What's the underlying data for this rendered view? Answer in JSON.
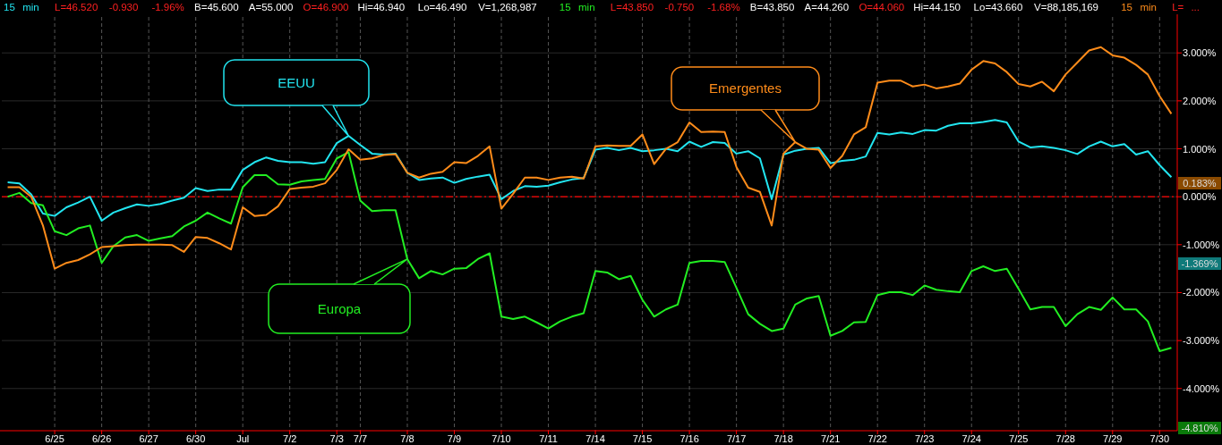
{
  "chart_data": {
    "type": "line",
    "ylim": [
      -4.88,
      3.88
    ],
    "categories": [
      null,
      null,
      null,
      null,
      "6/25",
      null,
      null,
      null,
      "6/26",
      null,
      null,
      null,
      "6/27",
      null,
      null,
      null,
      "6/30",
      null,
      null,
      null,
      "Jul",
      null,
      null,
      null,
      "7/2",
      null,
      null,
      null,
      "7/3",
      null,
      "7/7",
      null,
      null,
      null,
      "7/8",
      null,
      null,
      null,
      "7/9",
      null,
      null,
      null,
      "7/10",
      null,
      null,
      null,
      "7/11",
      null,
      null,
      null,
      "7/14",
      null,
      null,
      null,
      "7/15",
      null,
      null,
      null,
      "7/16",
      null,
      null,
      null,
      "7/17",
      null,
      null,
      null,
      "7/18",
      null,
      null,
      null,
      "7/21",
      null,
      null,
      null,
      "7/22",
      null,
      null,
      null,
      "7/23",
      null,
      null,
      null,
      "7/24",
      null,
      null,
      null,
      "7/25",
      null,
      null,
      null,
      "7/28",
      null,
      null,
      null,
      "7/29",
      null,
      null,
      null,
      "7/30",
      null
    ],
    "yticks": [
      {
        "value": 3,
        "label": "3.000%"
      },
      {
        "value": 2,
        "label": "2.000%"
      },
      {
        "value": 1,
        "label": "1.000%"
      },
      {
        "value": 0,
        "label": "0.000%"
      },
      {
        "value": -1,
        "label": "-1.000%"
      },
      {
        "value": -2,
        "label": "-2.000%"
      },
      {
        "value": -3,
        "label": "-3.000%"
      },
      {
        "value": -4,
        "label": "-4.000%"
      }
    ],
    "grid": true,
    "line_style": "solid",
    "marker": "none",
    "ref_lines": [
      {
        "axis": "y",
        "value": 0,
        "color": "#ff0000",
        "line_style": "dashed"
      }
    ],
    "annotations": [
      "15 min L=46.520 -0.930 -1.96% B=45.600 A=55.000 O=46.900 Hi=46.940 Lo=46.490 V=1,268,987",
      "15 min L=43.850 -0.750 -1.68% B=43.850 A=44.260 O=44.060 Hi=44.150 Lo=43.660 V=88,185,169",
      "15 min L= ...",
      "0.183%",
      "-1.369%",
      "-4.810%"
    ],
    "series": [
      {
        "name": "EEUU",
        "color": "#22e5f0",
        "values": [
          0.3,
          0.28,
          0.05,
          -0.35,
          -0.4,
          -0.22,
          -0.12,
          0.0,
          -0.5,
          -0.33,
          -0.24,
          -0.16,
          -0.19,
          -0.15,
          -0.08,
          -0.02,
          0.18,
          0.12,
          0.15,
          0.15,
          0.56,
          0.72,
          0.82,
          0.75,
          0.72,
          0.72,
          0.69,
          0.72,
          1.12,
          1.27,
          1.08,
          0.9,
          0.88,
          0.9,
          0.5,
          0.35,
          0.38,
          0.4,
          0.29,
          0.37,
          0.42,
          0.46,
          -0.05,
          0.12,
          0.22,
          0.21,
          0.23,
          0.3,
          0.36,
          0.39,
          0.98,
          1.02,
          0.97,
          1.02,
          0.95,
          0.97,
          1.0,
          0.95,
          1.15,
          1.04,
          1.14,
          1.12,
          0.9,
          0.95,
          0.8,
          -0.05,
          0.88,
          0.96,
          1.0,
          1.02,
          0.7,
          0.75,
          0.77,
          0.84,
          1.33,
          1.3,
          1.34,
          1.31,
          1.39,
          1.38,
          1.48,
          1.53,
          1.53,
          1.56,
          1.6,
          1.55,
          1.15,
          1.03,
          1.05,
          1.02,
          0.97,
          0.89,
          1.05,
          1.15,
          1.05,
          1.1,
          0.88,
          0.95,
          0.66,
          0.41
        ]
      },
      {
        "name": "Europa",
        "color": "#22ee22",
        "values": [
          0.0,
          0.08,
          -0.13,
          -0.18,
          -0.72,
          -0.8,
          -0.66,
          -0.6,
          -1.38,
          -1.03,
          -0.85,
          -0.8,
          -0.92,
          -0.87,
          -0.82,
          -0.62,
          -0.5,
          -0.33,
          -0.45,
          -0.56,
          0.2,
          0.45,
          0.45,
          0.26,
          0.25,
          0.32,
          0.35,
          0.37,
          0.8,
          0.93,
          -0.08,
          -0.3,
          -0.28,
          -0.28,
          -1.3,
          -1.7,
          -1.55,
          -1.62,
          -1.5,
          -1.49,
          -1.3,
          -1.18,
          -2.5,
          -2.55,
          -2.5,
          -2.62,
          -2.75,
          -2.6,
          -2.5,
          -2.43,
          -1.55,
          -1.58,
          -1.72,
          -1.65,
          -2.15,
          -2.5,
          -2.35,
          -2.25,
          -1.38,
          -1.34,
          -1.34,
          -1.36,
          -1.9,
          -2.45,
          -2.65,
          -2.8,
          -2.75,
          -2.25,
          -2.12,
          -2.07,
          -2.9,
          -2.8,
          -2.62,
          -2.61,
          -2.05,
          -1.99,
          -1.99,
          -2.05,
          -1.85,
          -1.94,
          -1.97,
          -1.99,
          -1.55,
          -1.45,
          -1.55,
          -1.5,
          -1.92,
          -2.35,
          -2.3,
          -2.3,
          -2.7,
          -2.45,
          -2.3,
          -2.36,
          -2.1,
          -2.35,
          -2.35,
          -2.6,
          -3.22,
          -3.15
        ]
      },
      {
        "name": "Emergentes",
        "color": "#ff8c1a",
        "values": [
          0.2,
          0.2,
          0.0,
          -0.6,
          -1.5,
          -1.38,
          -1.32,
          -1.2,
          -1.05,
          -1.03,
          -1.01,
          -1.0,
          -1.0,
          -1.0,
          -1.01,
          -1.15,
          -0.84,
          -0.86,
          -0.97,
          -1.1,
          -0.22,
          -0.4,
          -0.38,
          -0.2,
          0.16,
          0.19,
          0.21,
          0.28,
          0.56,
          0.99,
          0.77,
          0.8,
          0.87,
          0.89,
          0.5,
          0.4,
          0.48,
          0.52,
          0.72,
          0.7,
          0.85,
          1.05,
          -0.25,
          0.06,
          0.4,
          0.4,
          0.35,
          0.4,
          0.42,
          0.38,
          1.05,
          1.07,
          1.06,
          1.06,
          1.3,
          0.68,
          1.0,
          1.14,
          1.55,
          1.35,
          1.36,
          1.35,
          0.62,
          0.19,
          0.1,
          -0.6,
          0.9,
          1.14,
          1.0,
          0.98,
          0.6,
          0.85,
          1.3,
          1.45,
          2.38,
          2.42,
          2.42,
          2.3,
          2.34,
          2.26,
          2.3,
          2.36,
          2.65,
          2.83,
          2.78,
          2.6,
          2.35,
          2.3,
          2.4,
          2.2,
          2.55,
          2.8,
          3.05,
          3.12,
          2.95,
          2.9,
          2.75,
          2.55,
          2.1,
          1.73
        ]
      }
    ]
  }
}
